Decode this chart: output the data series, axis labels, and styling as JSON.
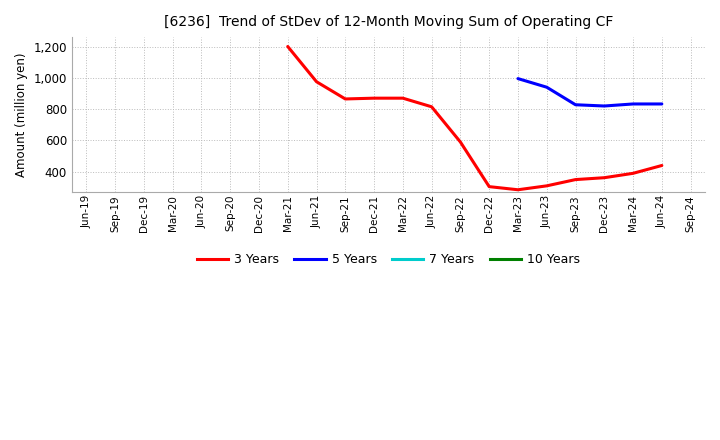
{
  "title": "[6236]  Trend of StDev of 12-Month Moving Sum of Operating CF",
  "ylabel": "Amount (million yen)",
  "ylim": [
    270,
    1260
  ],
  "yticks": [
    400,
    600,
    800,
    1000,
    1200
  ],
  "background_color": "#ffffff",
  "grid_color": "#aaaaaa",
  "series": {
    "3years": {
      "color": "#ff0000",
      "label": "3 Years",
      "x": [
        "Mar-21",
        "Jun-21",
        "Sep-21",
        "Dec-21",
        "Mar-22",
        "Jun-22",
        "Sep-22",
        "Dec-22",
        "Mar-23",
        "Jun-23",
        "Sep-23",
        "Dec-23",
        "Mar-24",
        "Jun-24"
      ],
      "y": [
        1200,
        975,
        865,
        870,
        870,
        815,
        590,
        305,
        285,
        310,
        350,
        362,
        390,
        440
      ]
    },
    "5years": {
      "color": "#0000ff",
      "label": "5 Years",
      "x": [
        "Mar-23",
        "Jun-23",
        "Sep-23",
        "Dec-23",
        "Mar-24",
        "Jun-24"
      ],
      "y": [
        995,
        940,
        828,
        820,
        833,
        833
      ]
    },
    "7years": {
      "color": "#00cccc",
      "label": "7 Years",
      "x": [],
      "y": []
    },
    "10years": {
      "color": "#008000",
      "label": "10 Years",
      "x": [],
      "y": []
    }
  },
  "xtick_labels": [
    "Jun-19",
    "Sep-19",
    "Dec-19",
    "Mar-20",
    "Jun-20",
    "Sep-20",
    "Dec-20",
    "Mar-21",
    "Jun-21",
    "Sep-21",
    "Dec-21",
    "Mar-22",
    "Jun-22",
    "Sep-22",
    "Dec-22",
    "Mar-23",
    "Jun-23",
    "Sep-23",
    "Dec-23",
    "Mar-24",
    "Jun-24",
    "Sep-24"
  ],
  "legend_labels": [
    "3 Years",
    "5 Years",
    "7 Years",
    "10 Years"
  ],
  "legend_colors": [
    "#ff0000",
    "#0000ff",
    "#00cccc",
    "#008000"
  ]
}
